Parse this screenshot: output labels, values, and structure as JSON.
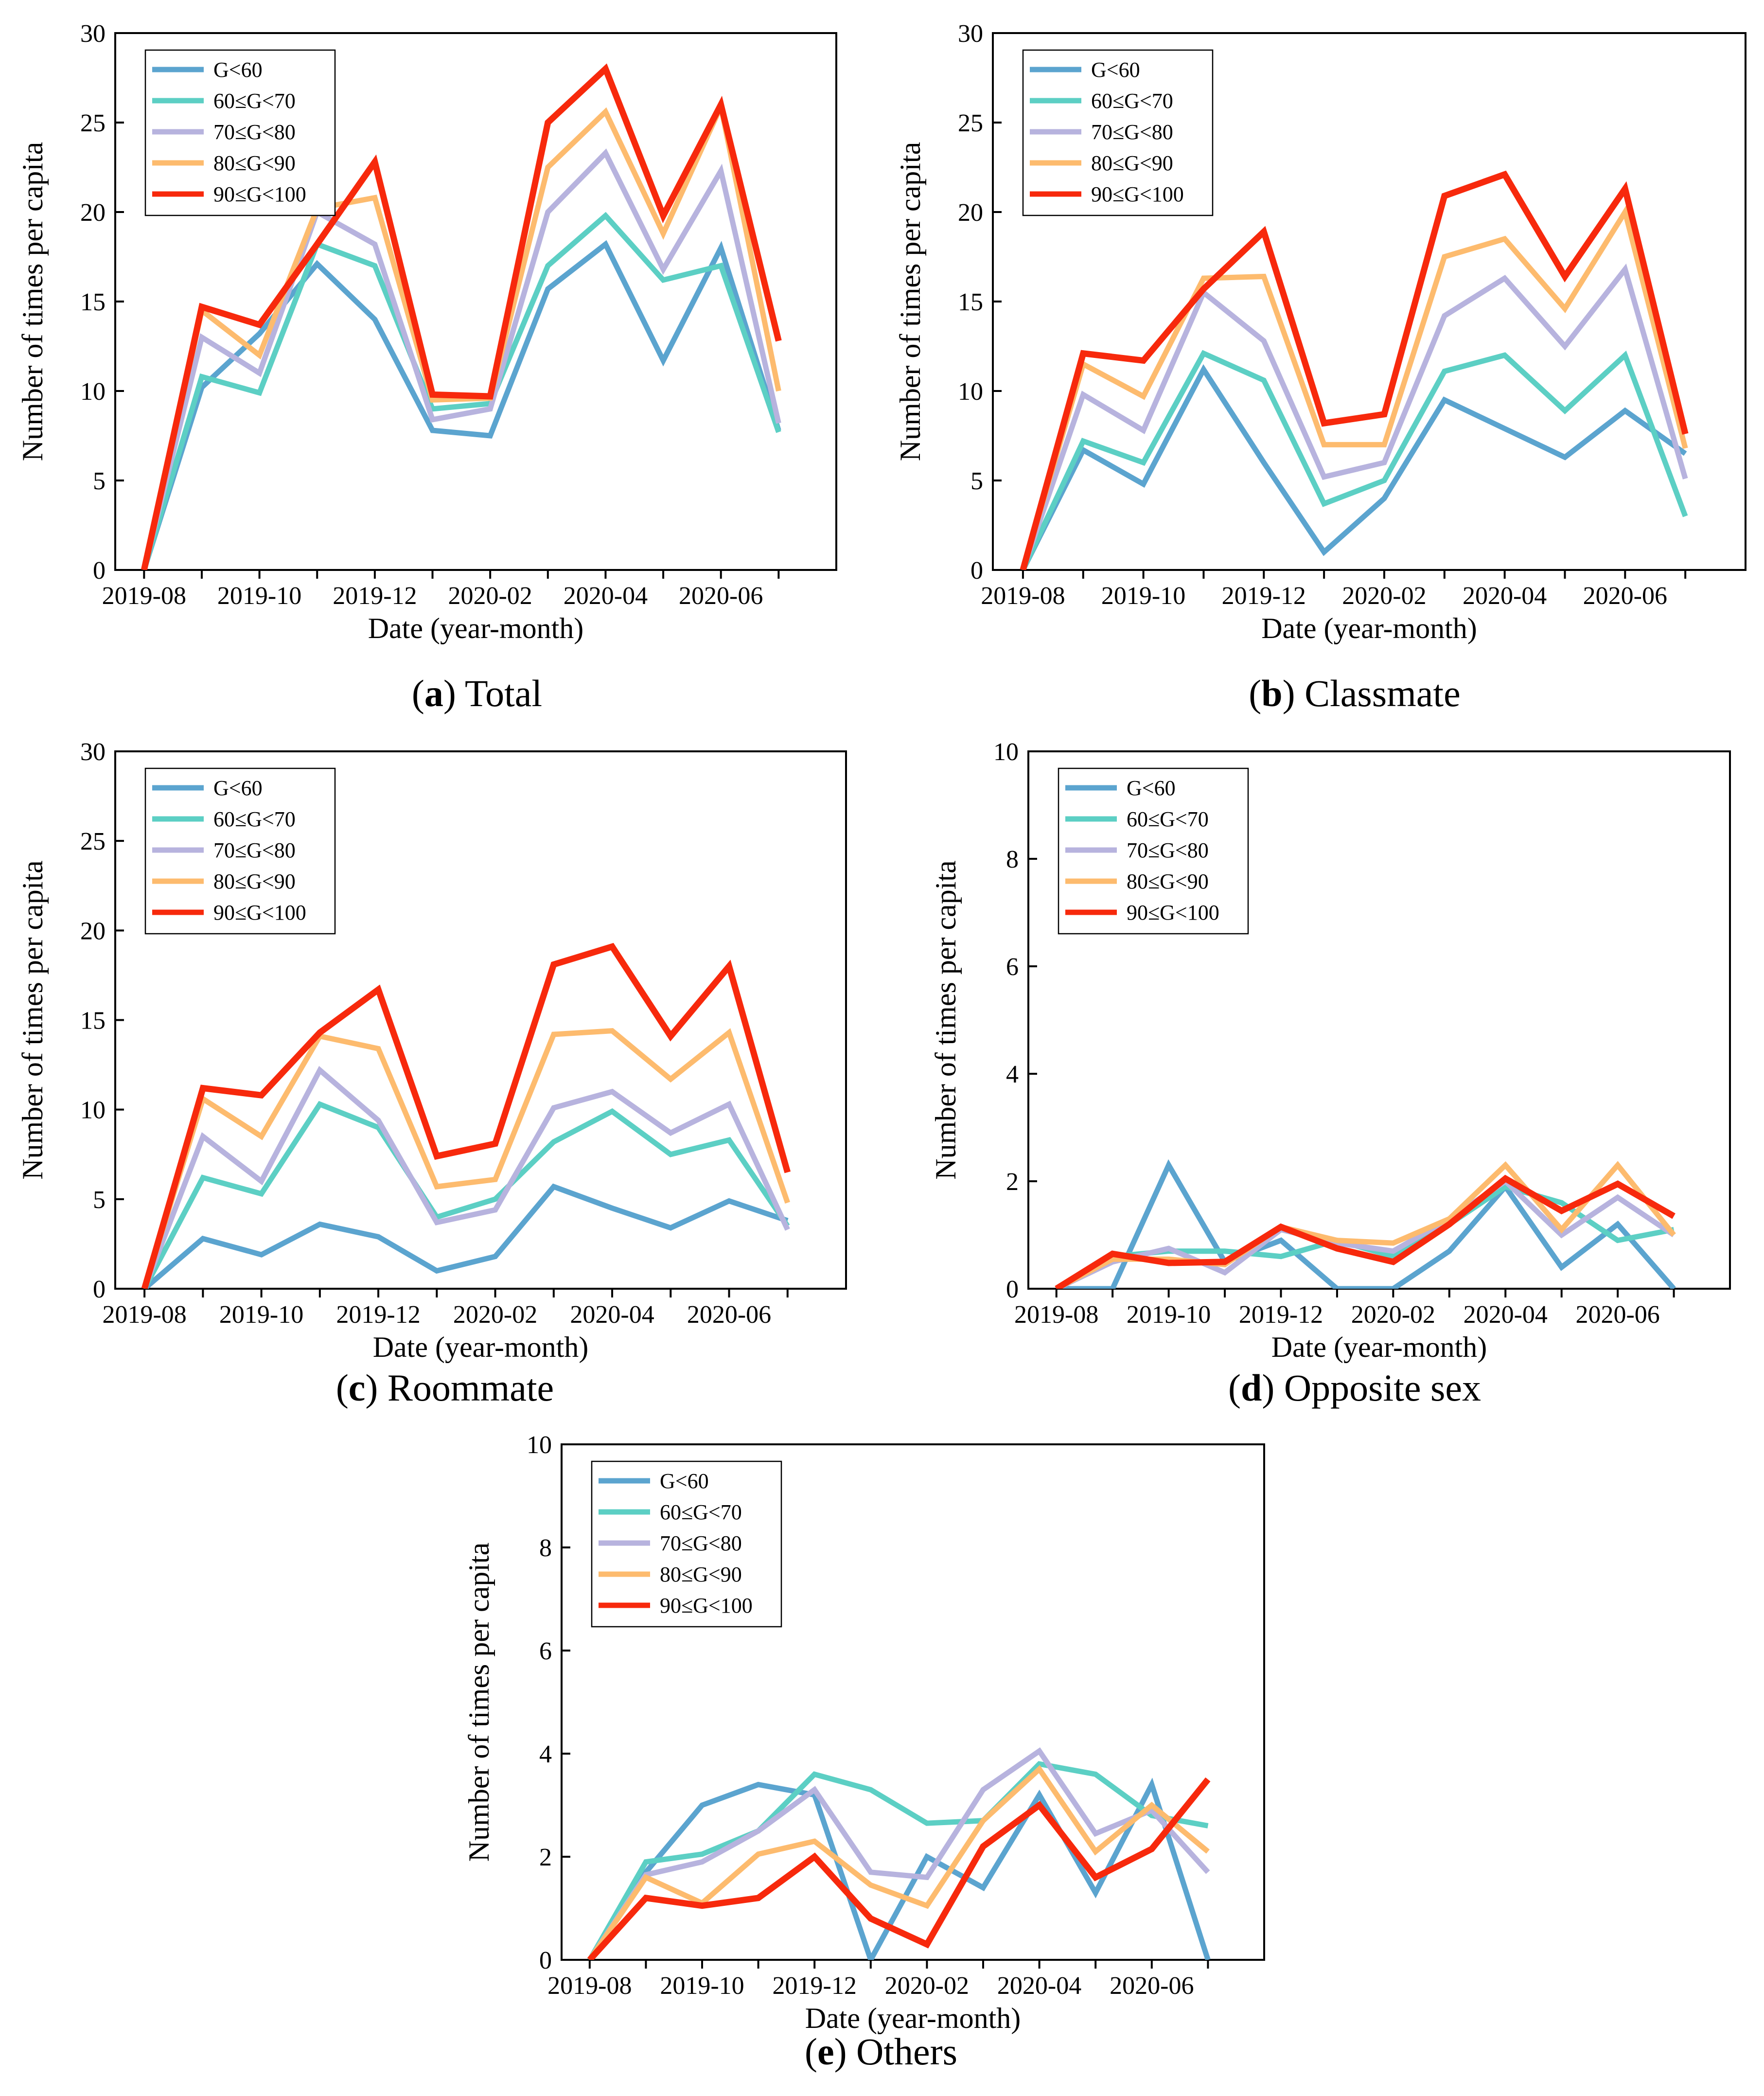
{
  "figure_title": "",
  "chart_data": [
    {
      "id": "a",
      "type": "line",
      "caption_letter": "a",
      "caption_text": " Total",
      "xlabel": "Date (year-month)",
      "ylabel": "Number of times per capita",
      "ylim": [
        0,
        30
      ],
      "yticks": [
        "0",
        "5",
        "10",
        "15",
        "20",
        "25",
        "30"
      ],
      "yticks_values": [
        0,
        5,
        10,
        15,
        20,
        25,
        30
      ],
      "xtick_labels": [
        "2019-08",
        "2019-10",
        "2019-12",
        "2020-02",
        "2020-04",
        "2020-06"
      ],
      "x": [
        "2019-08",
        "2019-09",
        "2019-10",
        "2019-11",
        "2019-12",
        "2020-01",
        "2020-02",
        "2020-03",
        "2020-04",
        "2020-05",
        "2020-06",
        "2020-07"
      ],
      "legend_position": "top-left",
      "series": [
        {
          "name": "G<60",
          "color": "#5ba4cf",
          "values": [
            0,
            10.2,
            13.2,
            17.1,
            14.0,
            7.8,
            7.5,
            15.7,
            18.2,
            11.7,
            18.0,
            7.8
          ]
        },
        {
          "name": "60≤G<70",
          "color": "#5ccfc4",
          "values": [
            0,
            10.8,
            9.9,
            18.2,
            17.0,
            9.0,
            9.3,
            17.0,
            19.8,
            16.2,
            17.0,
            7.7
          ]
        },
        {
          "name": "70≤G<80",
          "color": "#b7b3de",
          "values": [
            0,
            13.0,
            11.0,
            20.0,
            18.2,
            8.4,
            9.0,
            20.0,
            23.3,
            16.8,
            22.3,
            8.2
          ]
        },
        {
          "name": "80≤G<90",
          "color": "#fdbb6e",
          "values": [
            0,
            14.5,
            12.0,
            20.2,
            20.8,
            9.5,
            9.6,
            22.5,
            25.6,
            18.8,
            25.9,
            10.0
          ]
        },
        {
          "name": "90≤G<100",
          "color": "#f7290c",
          "values": [
            0,
            14.7,
            13.7,
            18.2,
            22.8,
            9.8,
            9.7,
            25.0,
            28.0,
            19.8,
            26.0,
            12.8
          ]
        }
      ]
    },
    {
      "id": "b",
      "type": "line",
      "caption_letter": "b",
      "caption_text": " Classmate",
      "xlabel": "Date (year-month)",
      "ylabel": "Number of times per capita",
      "ylim": [
        0,
        30
      ],
      "yticks": [
        "0",
        "5",
        "10",
        "15",
        "20",
        "25",
        "30"
      ],
      "yticks_values": [
        0,
        5,
        10,
        15,
        20,
        25,
        30
      ],
      "xtick_labels": [
        "2019-08",
        "2019-10",
        "2019-12",
        "2020-02",
        "2020-04",
        "2020-06"
      ],
      "x": [
        "2019-08",
        "2019-09",
        "2019-10",
        "2019-11",
        "2019-12",
        "2020-01",
        "2020-02",
        "2020-03",
        "2020-04",
        "2020-05",
        "2020-06",
        "2020-07"
      ],
      "legend_position": "top-left",
      "series": [
        {
          "name": "G<60",
          "color": "#5ba4cf",
          "values": [
            0,
            6.7,
            4.8,
            11.2,
            6.0,
            1.0,
            4.0,
            9.5,
            7.9,
            6.3,
            8.9,
            6.5
          ]
        },
        {
          "name": "60≤G<70",
          "color": "#5ccfc4",
          "values": [
            0,
            7.2,
            6.0,
            12.1,
            10.6,
            3.7,
            5.0,
            11.1,
            12.0,
            8.9,
            12.0,
            3.0
          ]
        },
        {
          "name": "70≤G<80",
          "color": "#b7b3de",
          "values": [
            0,
            9.8,
            7.8,
            15.5,
            12.8,
            5.2,
            6.0,
            14.2,
            16.3,
            12.5,
            16.8,
            5.1
          ]
        },
        {
          "name": "80≤G<90",
          "color": "#fdbb6e",
          "values": [
            0,
            11.5,
            9.7,
            16.3,
            16.4,
            7.0,
            7.0,
            17.5,
            18.5,
            14.6,
            20.0,
            6.8
          ]
        },
        {
          "name": "90≤G<100",
          "color": "#f7290c",
          "values": [
            0,
            12.1,
            11.7,
            15.7,
            18.9,
            8.2,
            8.7,
            20.9,
            22.1,
            16.4,
            21.3,
            7.6
          ]
        }
      ]
    },
    {
      "id": "c",
      "type": "line",
      "caption_letter": "c",
      "caption_text": " Roommate",
      "xlabel": "Date (year-month)",
      "ylabel": "Number of times per capita",
      "ylim": [
        0,
        30
      ],
      "yticks": [
        "0",
        "5",
        "10",
        "15",
        "20",
        "25",
        "30"
      ],
      "yticks_values": [
        0,
        5,
        10,
        15,
        20,
        25,
        30
      ],
      "xtick_labels": [
        "2019-08",
        "2019-10",
        "2019-12",
        "2020-02",
        "2020-04",
        "2020-06"
      ],
      "x": [
        "2019-08",
        "2019-09",
        "2019-10",
        "2019-11",
        "2019-12",
        "2020-01",
        "2020-02",
        "2020-03",
        "2020-04",
        "2020-05",
        "2020-06",
        "2020-07"
      ],
      "legend_position": "top-left",
      "series": [
        {
          "name": "G<60",
          "color": "#5ba4cf",
          "values": [
            0,
            2.8,
            1.9,
            3.6,
            2.9,
            1.0,
            1.8,
            5.7,
            4.5,
            3.4,
            4.9,
            3.8
          ]
        },
        {
          "name": "60≤G<70",
          "color": "#5ccfc4",
          "values": [
            0,
            6.2,
            5.3,
            10.3,
            9.0,
            4.0,
            5.0,
            8.2,
            9.9,
            7.5,
            8.3,
            3.5
          ]
        },
        {
          "name": "70≤G<80",
          "color": "#b7b3de",
          "values": [
            0,
            8.5,
            6.0,
            12.2,
            9.4,
            3.7,
            4.4,
            10.1,
            11.0,
            8.7,
            10.3,
            3.3
          ]
        },
        {
          "name": "80≤G<90",
          "color": "#fdbb6e",
          "values": [
            0,
            10.6,
            8.5,
            14.1,
            13.4,
            5.7,
            6.1,
            14.2,
            14.4,
            11.7,
            14.3,
            4.8
          ]
        },
        {
          "name": "90≤G<100",
          "color": "#f7290c",
          "values": [
            0,
            11.2,
            10.8,
            14.3,
            16.7,
            7.4,
            8.1,
            18.1,
            19.1,
            14.1,
            18.0,
            6.5
          ]
        }
      ]
    },
    {
      "id": "d",
      "type": "line",
      "caption_letter": "d",
      "caption_text": " Opposite sex",
      "xlabel": "Date (year-month)",
      "ylabel": "Number of times per capita",
      "ylim": [
        0,
        10
      ],
      "yticks": [
        "0",
        "2",
        "4",
        "6",
        "8",
        "10"
      ],
      "yticks_values": [
        0,
        2,
        4,
        6,
        8,
        10
      ],
      "xtick_labels": [
        "2019-08",
        "2019-10",
        "2019-12",
        "2020-02",
        "2020-04",
        "2020-06"
      ],
      "x": [
        "2019-08",
        "2019-09",
        "2019-10",
        "2019-11",
        "2019-12",
        "2020-01",
        "2020-02",
        "2020-03",
        "2020-04",
        "2020-05",
        "2020-06",
        "2020-07"
      ],
      "legend_position": "top-left",
      "series": [
        {
          "name": "G<60",
          "color": "#5ba4cf",
          "values": [
            0,
            0,
            2.3,
            0.5,
            0.9,
            0,
            0,
            0.7,
            1.9,
            0.4,
            1.2,
            0
          ]
        },
        {
          "name": "60≤G<70",
          "color": "#5ccfc4",
          "values": [
            0,
            0.6,
            0.7,
            0.7,
            0.6,
            0.9,
            0.6,
            1.2,
            1.9,
            1.6,
            0.9,
            1.1
          ]
        },
        {
          "name": "70≤G<80",
          "color": "#b7b3de",
          "values": [
            0,
            0.5,
            0.75,
            0.3,
            1.1,
            0.85,
            0.7,
            1.3,
            2.0,
            1.0,
            1.7,
            1.0
          ]
        },
        {
          "name": "80≤G<90",
          "color": "#fdbb6e",
          "values": [
            0,
            0.55,
            0.55,
            0.45,
            1.15,
            0.9,
            0.85,
            1.3,
            2.3,
            1.1,
            2.3,
            1.0
          ]
        },
        {
          "name": "90≤G<100",
          "color": "#f7290c",
          "values": [
            0,
            0.65,
            0.48,
            0.5,
            1.15,
            0.75,
            0.5,
            1.2,
            2.05,
            1.45,
            1.95,
            1.35
          ]
        }
      ]
    },
    {
      "id": "e",
      "type": "line",
      "caption_letter": "e",
      "caption_text": " Others",
      "xlabel": "Date (year-month)",
      "ylabel": "Number of times per capita",
      "ylim": [
        0,
        10
      ],
      "yticks": [
        "0",
        "2",
        "4",
        "6",
        "8",
        "10"
      ],
      "yticks_values": [
        0,
        2,
        4,
        6,
        8,
        10
      ],
      "xtick_labels": [
        "2019-08",
        "2019-10",
        "2019-12",
        "2020-02",
        "2020-04",
        "2020-06"
      ],
      "x": [
        "2019-08",
        "2019-09",
        "2019-10",
        "2019-11",
        "2019-12",
        "2020-01",
        "2020-02",
        "2020-03",
        "2020-04",
        "2020-05",
        "2020-06",
        "2020-07"
      ],
      "legend_position": "top-left",
      "series": [
        {
          "name": "G<60",
          "color": "#5ba4cf",
          "values": [
            0,
            1.7,
            3.0,
            3.4,
            3.2,
            0,
            2.0,
            1.4,
            3.2,
            1.3,
            3.4,
            0
          ]
        },
        {
          "name": "60≤G<70",
          "color": "#5ccfc4",
          "values": [
            0,
            1.9,
            2.05,
            2.5,
            3.6,
            3.3,
            2.65,
            2.7,
            3.8,
            3.6,
            2.8,
            2.6
          ]
        },
        {
          "name": "70≤G<80",
          "color": "#b7b3de",
          "values": [
            0,
            1.65,
            1.9,
            2.5,
            3.3,
            1.7,
            1.6,
            3.3,
            4.05,
            2.45,
            2.9,
            1.7
          ]
        },
        {
          "name": "80≤G<90",
          "color": "#fdbb6e",
          "values": [
            0,
            1.6,
            1.1,
            2.05,
            2.3,
            1.45,
            1.05,
            2.7,
            3.7,
            2.1,
            3.0,
            2.1
          ]
        },
        {
          "name": "90≤G<100",
          "color": "#f7290c",
          "values": [
            0,
            1.2,
            1.05,
            1.2,
            2.0,
            0.8,
            0.3,
            2.2,
            3.0,
            1.6,
            2.15,
            3.5
          ]
        }
      ]
    }
  ]
}
